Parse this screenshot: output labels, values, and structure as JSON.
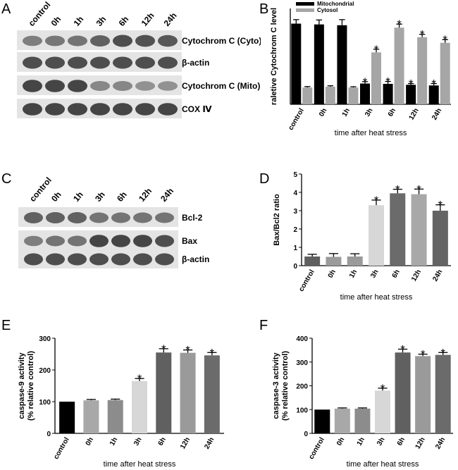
{
  "panels": {
    "A": {
      "letter": "A",
      "lanes": [
        "control",
        "0h",
        "1h",
        "3h",
        "6h",
        "12h",
        "24h"
      ],
      "blot_labels": [
        "Cytochrom C (Cyto)",
        "β-actin",
        "Cytochrom C (Mito)",
        "COX Ⅳ"
      ],
      "band_intensity": [
        [
          0.55,
          0.58,
          0.6,
          0.7,
          0.8,
          0.78,
          0.75
        ],
        [
          0.8,
          0.8,
          0.8,
          0.8,
          0.8,
          0.8,
          0.8
        ],
        [
          0.85,
          0.85,
          0.85,
          0.5,
          0.5,
          0.45,
          0.45
        ],
        [
          0.85,
          0.85,
          0.85,
          0.85,
          0.85,
          0.85,
          0.85
        ]
      ]
    },
    "B": {
      "letter": "B"
    },
    "C": {
      "letter": "C",
      "lanes": [
        "control",
        "0h",
        "1h",
        "3h",
        "6h",
        "12h",
        "24h"
      ],
      "blot_labels": [
        "Bcl-2",
        "Bax",
        "β-actin"
      ],
      "band_intensity": [
        [
          0.7,
          0.7,
          0.7,
          0.6,
          0.6,
          0.6,
          0.6
        ],
        [
          0.55,
          0.6,
          0.6,
          0.85,
          0.85,
          0.85,
          0.8
        ],
        [
          0.8,
          0.8,
          0.8,
          0.8,
          0.8,
          0.8,
          0.8
        ]
      ]
    },
    "D": {
      "letter": "D"
    },
    "E": {
      "letter": "E"
    },
    "F": {
      "letter": "F"
    }
  },
  "chart_data": [
    {
      "id": "B",
      "type": "bar",
      "categories": [
        "control",
        "0h",
        "1h",
        "3h",
        "6h",
        "12h",
        "24h"
      ],
      "series": [
        {
          "name": "Mitochondrial",
          "color": "#000000",
          "values": [
            5.05,
            5.0,
            4.95,
            1.3,
            1.28,
            1.22,
            1.18
          ],
          "errors": [
            0.25,
            0.28,
            0.35,
            0.12,
            0.15,
            0.08,
            0.12
          ],
          "sig": [
            false,
            false,
            false,
            true,
            true,
            true,
            true
          ]
        },
        {
          "name": "Cytosol",
          "color": "#a6a6a6",
          "values": [
            1.05,
            1.1,
            1.05,
            3.25,
            4.8,
            4.2,
            3.85
          ],
          "errors": [
            0.06,
            0.06,
            0.05,
            0.2,
            0.22,
            0.18,
            0.2
          ],
          "sig": [
            false,
            false,
            false,
            true,
            true,
            true,
            true
          ]
        }
      ],
      "ylabel": "raletive Cytochrom C level",
      "xlabel": "time after heat stress",
      "ylim": [
        0,
        6
      ],
      "yticks": [],
      "legend": "top-left",
      "grid": false
    },
    {
      "id": "D",
      "type": "bar",
      "categories": [
        "control",
        "0h",
        "1h",
        "3h",
        "6h",
        "12h",
        "24h"
      ],
      "values": [
        0.5,
        0.48,
        0.5,
        3.3,
        3.95,
        3.9,
        3.0
      ],
      "errors": [
        0.12,
        0.18,
        0.15,
        0.28,
        0.22,
        0.28,
        0.32
      ],
      "colors": [
        "#5f5f5f",
        "#9a9a9a",
        "#9a9a9a",
        "#d7d7d7",
        "#6b6b6b",
        "#a8a8a8",
        "#646464"
      ],
      "sig": [
        false,
        false,
        false,
        true,
        true,
        true,
        true
      ],
      "ylabel": "Bax/Bcl2 ratio",
      "xlabel": "time after heat stress",
      "ylim": [
        0,
        5
      ],
      "yticks": [
        "0",
        "1",
        "2",
        "3",
        "4",
        "5"
      ],
      "grid": false
    },
    {
      "id": "E",
      "type": "bar",
      "categories": [
        "control",
        "0h",
        "1h",
        "3h",
        "6h",
        "12h",
        "24h"
      ],
      "values": [
        100,
        104,
        105,
        165,
        255,
        254,
        246
      ],
      "errors": [
        0,
        3,
        3,
        8,
        12,
        9,
        9
      ],
      "colors": [
        "#000000",
        "#a8a8a8",
        "#8c8c8c",
        "#d7d7d7",
        "#606060",
        "#9a9a9a",
        "#6b6b6b"
      ],
      "sig": [
        false,
        false,
        false,
        true,
        true,
        true,
        true
      ],
      "ylabel": "caspase-9 activity",
      "ylabel2": "(% relative control)",
      "xlabel": "time after heat stress",
      "ylim": [
        0,
        300
      ],
      "yticks": [
        "0",
        "100",
        "200",
        "300"
      ],
      "grid": false
    },
    {
      "id": "F",
      "type": "bar",
      "categories": [
        "control",
        "0h",
        "1h",
        "3h",
        "6h",
        "12h",
        "24h"
      ],
      "values": [
        100,
        104,
        104,
        180,
        340,
        325,
        330
      ],
      "errors": [
        0,
        3,
        3,
        10,
        14,
        8,
        10
      ],
      "colors": [
        "#000000",
        "#a8a8a8",
        "#8c8c8c",
        "#d7d7d7",
        "#606060",
        "#9a9a9a",
        "#6b6b6b"
      ],
      "sig": [
        false,
        false,
        false,
        true,
        true,
        true,
        true
      ],
      "ylabel": "caspase-3 activity",
      "ylabel2": "(% relative control)",
      "xlabel": "time after heat stress",
      "ylim": [
        0,
        400
      ],
      "yticks": [
        "0",
        "100",
        "200",
        "300",
        "400"
      ],
      "grid": false
    }
  ]
}
